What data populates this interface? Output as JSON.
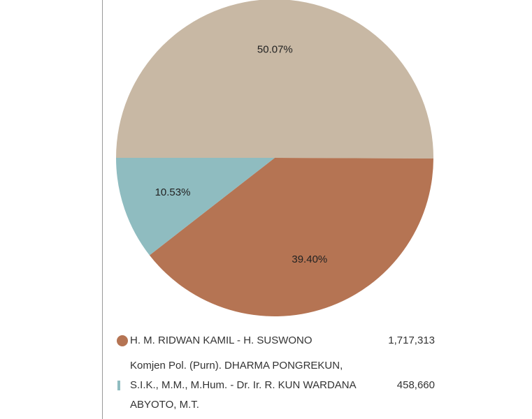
{
  "chart_data": {
    "type": "pie",
    "categories": [
      null,
      "H. M. RIDWAN KAMIL - H. SUSWONO",
      "Komjen Pol. (Purn). DHARMA PONGREKUN, S.I.K., M.M., M.Hum. - Dr. Ir. R. KUN WARDANA ABYOTO, M.T."
    ],
    "values": [
      50.07,
      39.4,
      10.53
    ],
    "value_labels": [
      "50.07%",
      "39.40%",
      "10.53%"
    ],
    "colors": [
      "#c8b8a4",
      "#b57453",
      "#8fbcc0"
    ],
    "legend_values": [
      null,
      "1,717,313",
      "458,660"
    ]
  }
}
